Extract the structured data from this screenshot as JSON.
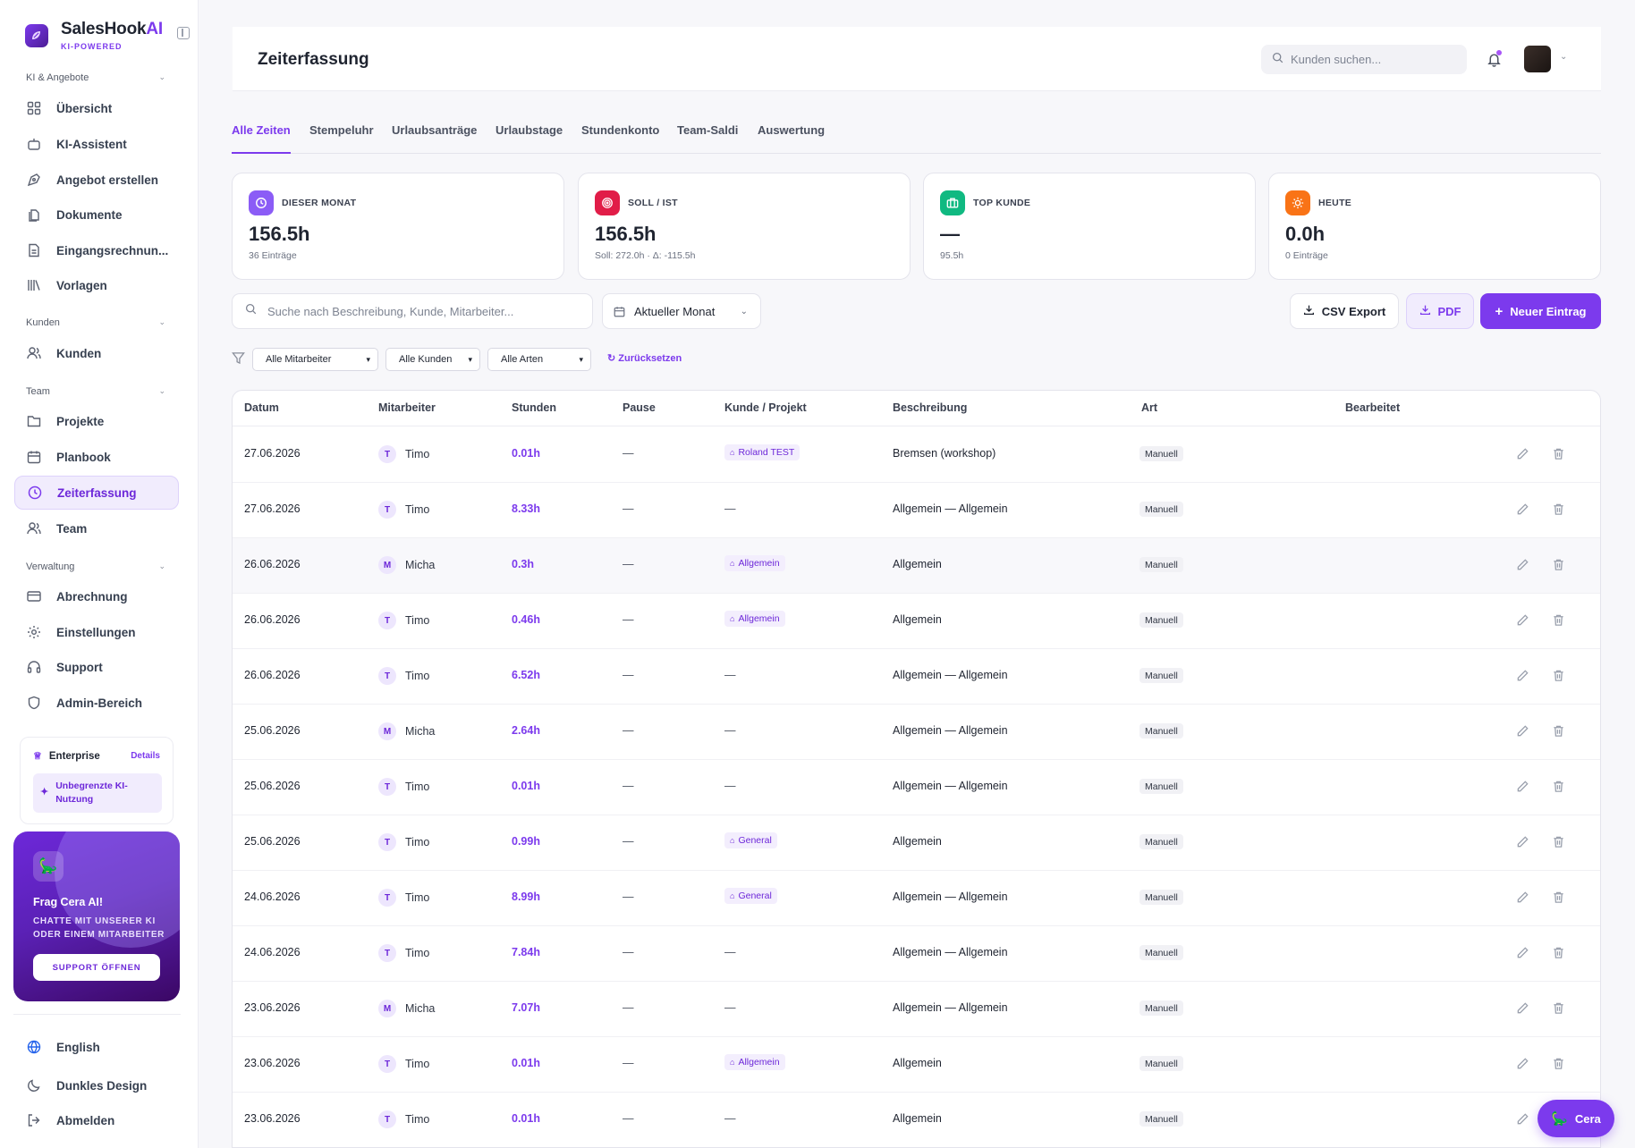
{
  "brand": {
    "name_main": "SalesHook",
    "name_ai": "AI",
    "tagline": "KI-POWERED"
  },
  "sidebar": {
    "sections": [
      {
        "title": "KI & Angebote"
      },
      {
        "title": "Kunden"
      },
      {
        "title": "Team"
      },
      {
        "title": "Verwaltung"
      }
    ],
    "items": [
      {
        "label": "Übersicht",
        "icon": "grid-icon"
      },
      {
        "label": "KI-Assistent",
        "icon": "robot-icon"
      },
      {
        "label": "Angebot erstellen",
        "icon": "pen-tool-icon"
      },
      {
        "label": "Dokumente",
        "icon": "files-icon"
      },
      {
        "label": "Eingangsrechnun...",
        "icon": "document-icon"
      },
      {
        "label": "Vorlagen",
        "icon": "library-icon"
      },
      {
        "label": "Kunden",
        "icon": "users-icon"
      },
      {
        "label": "Projekte",
        "icon": "folder-icon"
      },
      {
        "label": "Planbook",
        "icon": "calendar-icon"
      },
      {
        "label": "Zeiterfassung",
        "icon": "clock-icon",
        "active": true
      },
      {
        "label": "Team",
        "icon": "team-icon"
      },
      {
        "label": "Abrechnung",
        "icon": "credit-card-icon"
      },
      {
        "label": "Einstellungen",
        "icon": "gear-icon"
      },
      {
        "label": "Support",
        "icon": "headset-icon"
      },
      {
        "label": "Admin-Bereich",
        "icon": "shield-icon"
      }
    ],
    "plan": {
      "name": "Enterprise",
      "details": "Details",
      "feature": "Unbegrenzte KI-Nutzung"
    },
    "cera_card": {
      "title": "Frag Cera AI!",
      "subtitle": "CHATTE MIT UNSERER KI ODER EINEM MITARBEITER",
      "button": "SUPPORT ÖFFNEN"
    },
    "bottom": [
      {
        "label": "English",
        "icon": "globe-icon"
      },
      {
        "label": "Dunkles Design",
        "icon": "moon-icon"
      },
      {
        "label": "Abmelden",
        "icon": "logout-icon"
      }
    ]
  },
  "header": {
    "title": "Zeiterfassung",
    "search_placeholder": "Kunden suchen..."
  },
  "tabs": [
    "Alle Zeiten",
    "Stempeluhr",
    "Urlaubsanträge",
    "Urlaubstage",
    "Stundenkonto",
    "Team-Saldi",
    "Auswertung"
  ],
  "stats": [
    {
      "label": "DIESER MONAT",
      "value": "156.5h",
      "sub": "36 Einträge",
      "color": "#8b5cf6",
      "icon": "clock-icon"
    },
    {
      "label": "SOLL / IST",
      "value": "156.5h",
      "sub": "Soll: 272.0h · Δ: -115.5h",
      "color": "#e11d48",
      "icon": "target-icon"
    },
    {
      "label": "TOP KUNDE",
      "value": "—",
      "sub": "95.5h",
      "color": "#10b981",
      "icon": "briefcase-icon"
    },
    {
      "label": "HEUTE",
      "value": "0.0h",
      "sub": "0 Einträge",
      "color": "#f97316",
      "icon": "sun-icon"
    }
  ],
  "filters": {
    "search_placeholder": "Suche nach Beschreibung, Kunde, Mitarbeiter...",
    "period": "Aktueller Monat",
    "employee": "Alle Mitarbeiter",
    "customer": "Alle Kunden",
    "type": "Alle Arten",
    "reset": "Zurücksetzen"
  },
  "actions": {
    "csv": "CSV Export",
    "pdf": "PDF",
    "new": "Neuer Eintrag"
  },
  "table": {
    "headers": [
      "Datum",
      "Mitarbeiter",
      "Stunden",
      "Pause",
      "Kunde / Projekt",
      "Beschreibung",
      "Art",
      "Bearbeitet"
    ],
    "rows": [
      {
        "date": "27.06.2026",
        "initial": "T",
        "employee": "Timo",
        "hours": "0.01h",
        "pause": "—",
        "project": "Roland TEST",
        "description": "Bremsen (workshop)",
        "type": "Manuell"
      },
      {
        "date": "27.06.2026",
        "initial": "T",
        "employee": "Timo",
        "hours": "8.33h",
        "pause": "—",
        "project": "",
        "description": "Allgemein — Allgemein",
        "type": "Manuell"
      },
      {
        "date": "26.06.2026",
        "initial": "M",
        "employee": "Micha",
        "hours": "0.3h",
        "pause": "—",
        "project": "Allgemein",
        "description": "Allgemein",
        "type": "Manuell"
      },
      {
        "date": "26.06.2026",
        "initial": "T",
        "employee": "Timo",
        "hours": "0.46h",
        "pause": "—",
        "project": "Allgemein",
        "description": "Allgemein",
        "type": "Manuell"
      },
      {
        "date": "26.06.2026",
        "initial": "T",
        "employee": "Timo",
        "hours": "6.52h",
        "pause": "—",
        "project": "",
        "description": "Allgemein — Allgemein",
        "type": "Manuell"
      },
      {
        "date": "25.06.2026",
        "initial": "M",
        "employee": "Micha",
        "hours": "2.64h",
        "pause": "—",
        "project": "",
        "description": "Allgemein — Allgemein",
        "type": "Manuell"
      },
      {
        "date": "25.06.2026",
        "initial": "T",
        "employee": "Timo",
        "hours": "0.01h",
        "pause": "—",
        "project": "",
        "description": "Allgemein — Allgemein",
        "type": "Manuell"
      },
      {
        "date": "25.06.2026",
        "initial": "T",
        "employee": "Timo",
        "hours": "0.99h",
        "pause": "—",
        "project": "General",
        "description": "Allgemein",
        "type": "Manuell"
      },
      {
        "date": "24.06.2026",
        "initial": "T",
        "employee": "Timo",
        "hours": "8.99h",
        "pause": "—",
        "project": "General",
        "description": "Allgemein — Allgemein",
        "type": "Manuell"
      },
      {
        "date": "24.06.2026",
        "initial": "T",
        "employee": "Timo",
        "hours": "7.84h",
        "pause": "—",
        "project": "",
        "description": "Allgemein — Allgemein",
        "type": "Manuell"
      },
      {
        "date": "23.06.2026",
        "initial": "M",
        "employee": "Micha",
        "hours": "7.07h",
        "pause": "—",
        "project": "",
        "description": "Allgemein — Allgemein",
        "type": "Manuell"
      },
      {
        "date": "23.06.2026",
        "initial": "T",
        "employee": "Timo",
        "hours": "0.01h",
        "pause": "—",
        "project": "Allgemein",
        "description": "Allgemein",
        "type": "Manuell"
      },
      {
        "date": "23.06.2026",
        "initial": "T",
        "employee": "Timo",
        "hours": "0.01h",
        "pause": "—",
        "project": "",
        "description": "Allgemein",
        "type": "Manuell"
      }
    ]
  },
  "fab": {
    "label": "Cera"
  },
  "no_project": "—"
}
